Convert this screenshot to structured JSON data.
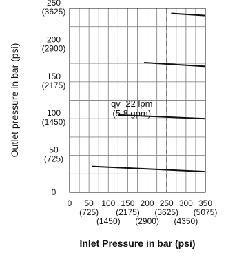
{
  "chart_data": {
    "type": "line",
    "title": "",
    "xlabel": "Inlet Pressure in bar (psi)",
    "ylabel": "Outlet pressure in bar (psi)",
    "xlim": [
      0,
      350
    ],
    "ylim": [
      0,
      250
    ],
    "grid": true,
    "x_ticks": [
      {
        "value": 0,
        "bar": "0",
        "psi": ""
      },
      {
        "value": 50,
        "bar": "50",
        "psi": "(725)"
      },
      {
        "value": 100,
        "bar": "100",
        "psi": "(1450)"
      },
      {
        "value": 150,
        "bar": "150",
        "psi": "(2175)"
      },
      {
        "value": 200,
        "bar": "200",
        "psi": "(2900)"
      },
      {
        "value": 250,
        "bar": "250",
        "psi": "(3625)"
      },
      {
        "value": 300,
        "bar": "300",
        "psi": "(4350)"
      },
      {
        "value": 350,
        "bar": "350",
        "psi": "(5075)"
      }
    ],
    "y_ticks": [
      {
        "value": 0,
        "bar": "0",
        "psi": ""
      },
      {
        "value": 50,
        "bar": "50",
        "psi": "(725)"
      },
      {
        "value": 100,
        "bar": "100",
        "psi": "(1450)"
      },
      {
        "value": 150,
        "bar": "150",
        "psi": "(2175)"
      },
      {
        "value": 200,
        "bar": "200",
        "psi": "(2900)"
      },
      {
        "value": 250,
        "bar": "250",
        "psi": "(3625)"
      }
    ],
    "series": [
      {
        "x": [
          57,
          350
        ],
        "y": [
          35,
          28
        ]
      },
      {
        "x": [
          125,
          350
        ],
        "y": [
          105,
          100
        ]
      },
      {
        "x": [
          192,
          350
        ],
        "y": [
          176,
          171
        ]
      },
      {
        "x": [
          262,
          350
        ],
        "y": [
          243,
          240
        ]
      }
    ],
    "reference_line": {
      "x": 250,
      "style": "dashed"
    },
    "annotation": {
      "line1": "qv=22 lpm",
      "line2": "(5.8 gpm)",
      "x": 155,
      "y": 118
    }
  }
}
